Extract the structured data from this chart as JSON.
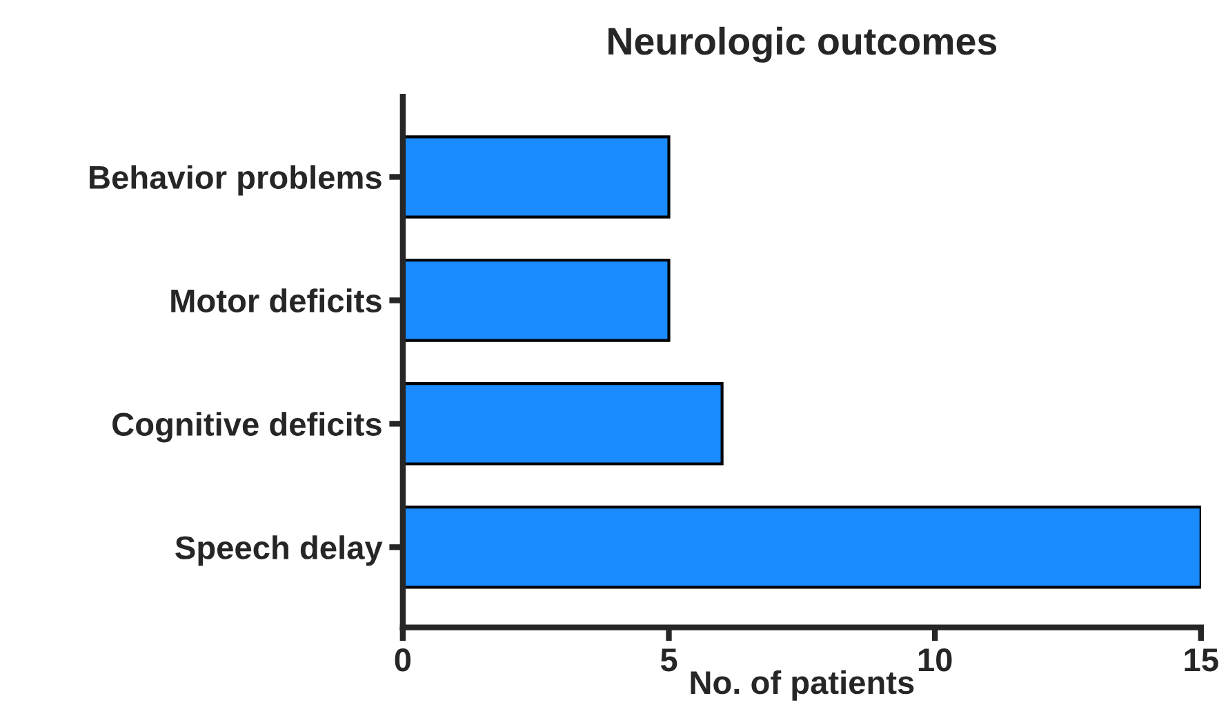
{
  "chart_data": {
    "type": "bar",
    "orientation": "horizontal",
    "title": "Neurologic outcomes",
    "xlabel": "No. of patients",
    "categories": [
      "Behavior problems",
      "Motor deficits",
      "Cognitive deficits",
      "Speech delay"
    ],
    "values": [
      5,
      5,
      6,
      15
    ],
    "color": "#1a8cff",
    "xlim": [
      0,
      15
    ],
    "xticks": [
      0,
      5,
      10,
      15
    ],
    "grid": false,
    "legend": false
  }
}
